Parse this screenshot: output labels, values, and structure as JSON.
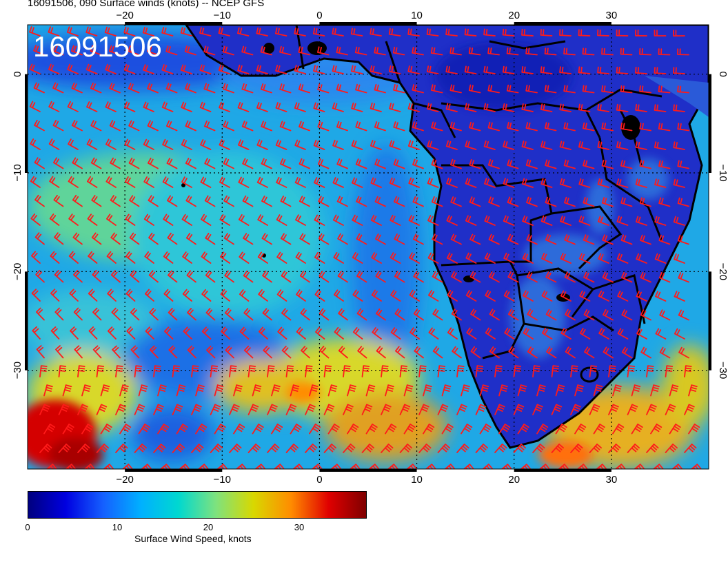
{
  "title": "16091506, 090 Surface winds (knots) -- NCEP GFS",
  "stamp": "16091506",
  "lon_ticks": [
    "−20",
    "−10",
    "0",
    "10",
    "20",
    "30"
  ],
  "lat_ticks": [
    "0",
    "−10",
    "−20",
    "−30"
  ],
  "colorbar": {
    "label": "Surface Wind Speed, knots",
    "ticks": [
      "0",
      "10",
      "20",
      "30"
    ],
    "stops": [
      "#00007f",
      "#0000e0",
      "#1560ff",
      "#00b0ff",
      "#00d8d0",
      "#7ee27e",
      "#d8d800",
      "#ff8c00",
      "#e00000",
      "#7f0000"
    ]
  },
  "colors": {
    "barb": "#ff1a1a",
    "land": "#1f2fc8",
    "ocean_low": "#1d4fe0",
    "ocean_mid": "#1fb8e8",
    "ocean_high": "#d8d82a",
    "ocean_max": "#d40000",
    "coast": "#000000"
  },
  "chart_data": {
    "type": "heatmap",
    "variable": "Surface Wind Speed, knots",
    "lon_range": [
      -30,
      40
    ],
    "lat_range": [
      -40,
      5
    ],
    "value_range": [
      0,
      38
    ],
    "lon_ticks": [
      -20,
      -10,
      0,
      10,
      20,
      30
    ],
    "lat_ticks": [
      0,
      -10,
      -20,
      -30
    ],
    "colorbar_ticks": [
      0,
      10,
      20,
      30
    ],
    "grid": true
  }
}
